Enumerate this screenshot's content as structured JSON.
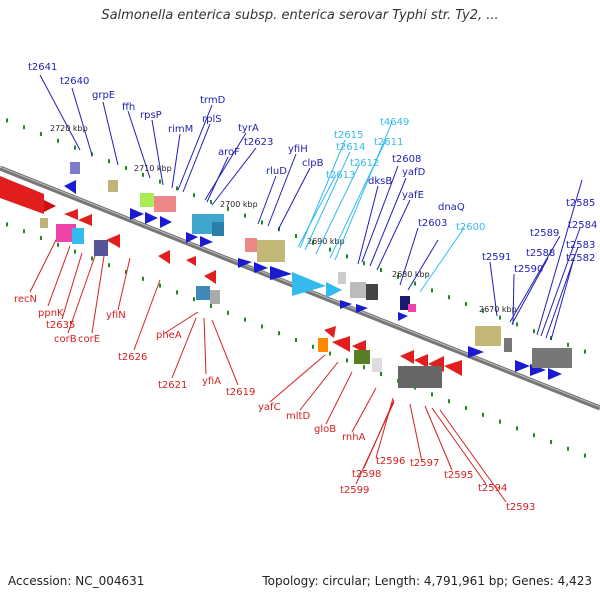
{
  "title": "Salmonella enterica subsp. enterica serovar Typhi str. Ty2, ...",
  "accession": "Accession: NC_004631",
  "summary": "Topology: circular; Length: 4,791,961 bp; Genes: 4,423",
  "colors": {
    "plus_label": "#1f1fb4",
    "minus_label": "#d42020",
    "rna_label": "#33bbee",
    "tick_mark": "#1e8c1e",
    "backbone": "#777777"
  },
  "kbp_ticks": [
    "2720 kbp",
    "2710 kbp",
    "2700 kbp",
    "2690 kbp",
    "2680 kbp",
    "2670 kbp"
  ],
  "top_labels": [
    {
      "text": "t2641",
      "type": "cds"
    },
    {
      "text": "t2640",
      "type": "cds"
    },
    {
      "text": "grpE",
      "type": "cds"
    },
    {
      "text": "ffh",
      "type": "cds"
    },
    {
      "text": "rpsP",
      "type": "cds"
    },
    {
      "text": "rimM",
      "type": "cds"
    },
    {
      "text": "trmD",
      "type": "cds"
    },
    {
      "text": "rplS",
      "type": "cds"
    },
    {
      "text": "tyrA",
      "type": "cds"
    },
    {
      "text": "t2623",
      "type": "cds"
    },
    {
      "text": "aroF",
      "type": "cds"
    },
    {
      "text": "rluD",
      "type": "cds"
    },
    {
      "text": "yfiH",
      "type": "cds"
    },
    {
      "text": "clpB",
      "type": "cds"
    },
    {
      "text": "t2615",
      "type": "rna"
    },
    {
      "text": "t2614",
      "type": "rna"
    },
    {
      "text": "t2613",
      "type": "rna"
    },
    {
      "text": "t2612",
      "type": "rna"
    },
    {
      "text": "t4649",
      "type": "rna"
    },
    {
      "text": "t2611",
      "type": "rna"
    },
    {
      "text": "dksB",
      "type": "cds"
    },
    {
      "text": "t2608",
      "type": "cds"
    },
    {
      "text": "yafD",
      "type": "cds"
    },
    {
      "text": "yafE",
      "type": "cds"
    },
    {
      "text": "t2603",
      "type": "cds"
    },
    {
      "text": "dnaQ",
      "type": "cds"
    },
    {
      "text": "t2600",
      "type": "rna"
    },
    {
      "text": "t2591",
      "type": "cds"
    },
    {
      "text": "t2589",
      "type": "cds"
    },
    {
      "text": "t2588",
      "type": "cds"
    },
    {
      "text": "t2590",
      "type": "cds"
    },
    {
      "text": "t2585",
      "type": "cds"
    },
    {
      "text": "t2584",
      "type": "cds"
    },
    {
      "text": "t2583",
      "type": "cds"
    },
    {
      "text": "t2582",
      "type": "cds"
    }
  ],
  "bottom_labels": [
    {
      "text": "recN"
    },
    {
      "text": "ppnK"
    },
    {
      "text": "t2635"
    },
    {
      "text": "corB"
    },
    {
      "text": "corE"
    },
    {
      "text": "yfiN"
    },
    {
      "text": "t2626"
    },
    {
      "text": "pheA"
    },
    {
      "text": "t2621"
    },
    {
      "text": "yfiA"
    },
    {
      "text": "t2619"
    },
    {
      "text": "yafC"
    },
    {
      "text": "mltD"
    },
    {
      "text": "gloB"
    },
    {
      "text": "rnhA"
    },
    {
      "text": "t2596"
    },
    {
      "text": "t2598"
    },
    {
      "text": "t2599"
    },
    {
      "text": "t2597"
    },
    {
      "text": "t2595"
    },
    {
      "text": "t2594"
    },
    {
      "text": "t2593"
    }
  ]
}
